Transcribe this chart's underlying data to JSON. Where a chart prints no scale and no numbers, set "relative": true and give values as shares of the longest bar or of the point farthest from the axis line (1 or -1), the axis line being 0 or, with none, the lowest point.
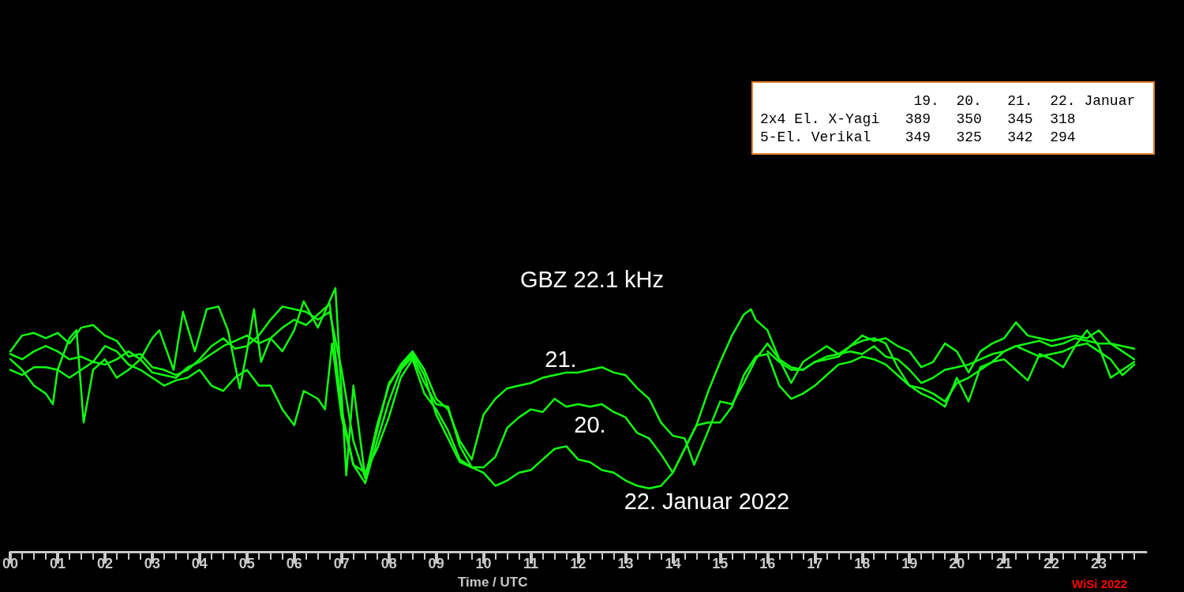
{
  "chart_data": [
    {
      "type": "line",
      "title": "GBZ 22.1 kHz",
      "xlabel": "Time / UTC",
      "annotations": [
        "WiSi 2022"
      ],
      "relative": true,
      "xlim": [
        0,
        24
      ],
      "xticks": [
        {
          "value": 0,
          "label": "00"
        },
        {
          "value": 0.25,
          "label": null
        },
        {
          "value": 0.5,
          "label": null
        },
        {
          "value": 0.75,
          "label": null
        },
        {
          "value": 1,
          "label": "01"
        },
        {
          "value": 1.25,
          "label": null
        },
        {
          "value": 1.5,
          "label": null
        },
        {
          "value": 1.75,
          "label": null
        },
        {
          "value": 2,
          "label": "02"
        },
        {
          "value": 2.25,
          "label": null
        },
        {
          "value": 2.5,
          "label": null
        },
        {
          "value": 2.75,
          "label": null
        },
        {
          "value": 3,
          "label": "03"
        },
        {
          "value": 3.25,
          "label": null
        },
        {
          "value": 3.5,
          "label": null
        },
        {
          "value": 3.75,
          "label": null
        },
        {
          "value": 4,
          "label": "04"
        },
        {
          "value": 4.25,
          "label": null
        },
        {
          "value": 4.5,
          "label": null
        },
        {
          "value": 4.75,
          "label": null
        },
        {
          "value": 5,
          "label": "05"
        },
        {
          "value": 5.25,
          "label": null
        },
        {
          "value": 5.5,
          "label": null
        },
        {
          "value": 5.75,
          "label": null
        },
        {
          "value": 6,
          "label": "06"
        },
        {
          "value": 6.25,
          "label": null
        },
        {
          "value": 6.5,
          "label": null
        },
        {
          "value": 6.75,
          "label": null
        },
        {
          "value": 7,
          "label": "07"
        },
        {
          "value": 7.25,
          "label": null
        },
        {
          "value": 7.5,
          "label": null
        },
        {
          "value": 7.75,
          "label": null
        },
        {
          "value": 8,
          "label": "08"
        },
        {
          "value": 8.25,
          "label": null
        },
        {
          "value": 8.5,
          "label": null
        },
        {
          "value": 8.75,
          "label": null
        },
        {
          "value": 9,
          "label": "09"
        },
        {
          "value": 9.25,
          "label": null
        },
        {
          "value": 9.5,
          "label": null
        },
        {
          "value": 9.75,
          "label": null
        },
        {
          "value": 10,
          "label": "10"
        },
        {
          "value": 10.25,
          "label": null
        },
        {
          "value": 10.5,
          "label": null
        },
        {
          "value": 10.75,
          "label": null
        },
        {
          "value": 11,
          "label": "11"
        },
        {
          "value": 11.25,
          "label": null
        },
        {
          "value": 11.5,
          "label": null
        },
        {
          "value": 11.75,
          "label": null
        },
        {
          "value": 12,
          "label": "12"
        },
        {
          "value": 12.25,
          "label": null
        },
        {
          "value": 12.5,
          "label": null
        },
        {
          "value": 12.75,
          "label": null
        },
        {
          "value": 13,
          "label": "13"
        },
        {
          "value": 13.25,
          "label": null
        },
        {
          "value": 13.5,
          "label": null
        },
        {
          "value": 13.75,
          "label": null
        },
        {
          "value": 14,
          "label": "14"
        },
        {
          "value": 14.25,
          "label": null
        },
        {
          "value": 14.5,
          "label": null
        },
        {
          "value": 14.75,
          "label": null
        },
        {
          "value": 15,
          "label": "15"
        },
        {
          "value": 15.25,
          "label": null
        },
        {
          "value": 15.5,
          "label": null
        },
        {
          "value": 15.75,
          "label": null
        },
        {
          "value": 16,
          "label": "16"
        },
        {
          "value": 16.25,
          "label": null
        },
        {
          "value": 16.5,
          "label": null
        },
        {
          "value": 16.75,
          "label": null
        },
        {
          "value": 17,
          "label": "17"
        },
        {
          "value": 17.25,
          "label": null
        },
        {
          "value": 17.5,
          "label": null
        },
        {
          "value": 17.75,
          "label": null
        },
        {
          "value": 18,
          "label": "18"
        },
        {
          "value": 18.25,
          "label": null
        },
        {
          "value": 18.5,
          "label": null
        },
        {
          "value": 18.75,
          "label": null
        },
        {
          "value": 19,
          "label": "19"
        },
        {
          "value": 19.25,
          "label": null
        },
        {
          "value": 19.5,
          "label": null
        },
        {
          "value": 19.75,
          "label": null
        },
        {
          "value": 20,
          "label": "20"
        },
        {
          "value": 20.25,
          "label": null
        },
        {
          "value": 20.5,
          "label": null
        },
        {
          "value": 20.75,
          "label": null
        },
        {
          "value": 21,
          "label": "21"
        },
        {
          "value": 21.25,
          "label": null
        },
        {
          "value": 21.5,
          "label": null
        },
        {
          "value": 21.75,
          "label": null
        },
        {
          "value": 22,
          "label": "22"
        },
        {
          "value": 22.25,
          "label": null
        },
        {
          "value": 22.5,
          "label": null
        },
        {
          "value": 22.75,
          "label": null
        },
        {
          "value": 23,
          "label": "23"
        },
        {
          "value": 23.25,
          "label": null
        },
        {
          "value": 23.5,
          "label": null
        },
        {
          "value": 23.75,
          "label": null
        }
      ],
      "series": [
        {
          "color": "#11ff11",
          "x": [
            0,
            0.25,
            0.5,
            0.75,
            0.9,
            1,
            1.25,
            1.4,
            1.55,
            1.75,
            2,
            2.25,
            2.5,
            2.75,
            3,
            3.15,
            3.45,
            3.65,
            3.9,
            4.15,
            4.4,
            4.6,
            4.85,
            5,
            5.15,
            5.3,
            5.5,
            5.75,
            6,
            6.2,
            6.5,
            6.87,
            7.1,
            7.25,
            7.5,
            7.75,
            8,
            8.25,
            8.5,
            8.75,
            9,
            9.25,
            9.5,
            9.75,
            12,
            16,
            16.25,
            16.5,
            16.75,
            17,
            17.25,
            17.5,
            17.75,
            18,
            18.25,
            18.5,
            18.75,
            19,
            19.25,
            19.5,
            19.75,
            20,
            20.25,
            20.5,
            20.75,
            21,
            21.25,
            21.5,
            21.75,
            22,
            22.25,
            22.5,
            22.75,
            23,
            23.25,
            23.5,
            23.75
          ],
          "values": [
            0.73,
            0.69,
            0.63,
            0.6,
            0.56,
            0.69,
            0.81,
            0.84,
            0.49,
            0.69,
            0.73,
            0.66,
            0.69,
            0.73,
            0.81,
            0.84,
            0.69,
            0.91,
            0.76,
            0.92,
            0.93,
            0.84,
            0.62,
            0.76,
            0.92,
            0.72,
            0.81,
            0.76,
            0.84,
            0.95,
            0.85,
            1,
            0.29,
            0.63,
            0.28,
            0.46,
            0.64,
            0.7,
            0.75,
            0.67,
            0.52,
            0.43,
            0.34,
            0.32,
            null,
            0.76,
            0.72,
            0.69,
            0.69,
            0.72,
            0.74,
            0.75,
            0.78,
            0.8,
            0.81,
            0.79,
            0.7,
            0.63,
            0.6,
            0.58,
            0.55,
            0.66,
            0.57,
            0.7,
            0.72,
            0.73,
            0.69,
            0.65,
            0.75,
            0.73,
            0.7,
            0.78,
            0.84,
            0.78,
            0.66,
            0.69,
            0.72
          ]
        },
        {
          "name": "21.",
          "color": "#11ff11",
          "x": [
            0,
            0.25,
            0.5,
            0.75,
            1,
            1.25,
            1.5,
            1.75,
            2,
            2.25,
            2.5,
            2.75,
            3,
            3.25,
            3.5,
            3.75,
            4,
            4.25,
            4.5,
            4.75,
            5,
            5.25,
            5.5,
            5.75,
            6,
            6.25,
            6.5,
            6.75,
            7,
            7.25,
            7.5,
            7.75,
            8,
            8.25,
            8.5,
            8.75,
            9,
            9.25,
            9.5,
            9.75,
            10,
            10.25,
            10.5,
            10.75,
            11,
            11.25,
            11.5,
            11.75,
            12,
            12.25,
            12.5,
            12.75,
            13,
            13.25,
            13.5,
            13.75,
            14,
            14.25,
            14.45,
            14.75,
            15,
            15.25,
            15.5,
            15.75,
            16,
            16.25,
            16.5,
            16.75,
            17,
            17.25,
            17.5,
            17.75,
            18,
            18.25,
            18.5,
            18.75,
            19,
            19.25,
            19.5,
            19.75,
            20,
            20.25,
            20.5,
            20.75,
            21,
            21.25,
            21.5,
            21.75,
            22,
            22.25,
            22.5,
            22.75,
            23,
            23.25,
            23.5,
            23.75
          ],
          "values": [
            0.76,
            0.82,
            0.83,
            0.81,
            0.83,
            0.79,
            0.85,
            0.86,
            0.82,
            0.8,
            0.74,
            0.75,
            0.7,
            0.69,
            0.67,
            0.69,
            0.73,
            0.78,
            0.81,
            0.77,
            0.78,
            0.82,
            0.88,
            0.93,
            0.92,
            0.91,
            0.88,
            0.91,
            0.69,
            0.42,
            0.28,
            0.48,
            0.63,
            0.71,
            0.76,
            0.69,
            0.58,
            0.54,
            0.42,
            0.35,
            0.52,
            0.58,
            0.62,
            0.63,
            0.64,
            0.66,
            0.67,
            0.68,
            0.68,
            0.69,
            0.7,
            0.68,
            0.67,
            0.62,
            0.58,
            0.49,
            0.44,
            0.43,
            0.33,
            0.46,
            0.57,
            0.56,
            0.64,
            0.73,
            0.79,
            0.73,
            0.7,
            0.69,
            0.72,
            0.73,
            0.74,
            0.78,
            0.82,
            0.8,
            0.81,
            0.78,
            0.76,
            0.7,
            0.72,
            0.79,
            0.76,
            0.68,
            0.76,
            0.79,
            0.81,
            0.87,
            0.82,
            0.81,
            0.8,
            0.81,
            0.82,
            0.81,
            0.84,
            0.79,
            0.76,
            0.73
          ]
        },
        {
          "name": "20.",
          "color": "#11ff11",
          "x": [
            0,
            0.25,
            0.5,
            0.75,
            1,
            1.25,
            1.5,
            1.75,
            2,
            2.25,
            2.5,
            2.75,
            3,
            3.25,
            3.5,
            3.75,
            4,
            4.25,
            4.5,
            4.75,
            5,
            5.25,
            5.5,
            5.75,
            6,
            6.25,
            6.5,
            6.75,
            7,
            7.25,
            7.5,
            7.75,
            8,
            8.25,
            8.5,
            8.75,
            9,
            9.25,
            9.5,
            9.75,
            10,
            10.25,
            10.5,
            10.75,
            11,
            11.25,
            11.5,
            11.75,
            12,
            12.25,
            12.5,
            12.75,
            13,
            13.25,
            13.5,
            13.75,
            14,
            14.25,
            14.5,
            14.75,
            15,
            15.25,
            15.5,
            15.75,
            16,
            16.25,
            16.5,
            16.75,
            17,
            17.25,
            17.5,
            17.75,
            18,
            18.25,
            18.5,
            18.75,
            19,
            19.25,
            19.5,
            19.75,
            20,
            20.25,
            20.5,
            20.75,
            21,
            21.25,
            21.5,
            21.75,
            22,
            22.25,
            22.5,
            22.75,
            23,
            23.25,
            23.5,
            23.75
          ],
          "values": [
            0.75,
            0.73,
            0.76,
            0.78,
            0.76,
            0.73,
            0.74,
            0.72,
            0.71,
            0.73,
            0.76,
            0.73,
            0.68,
            0.67,
            0.66,
            0.7,
            0.72,
            0.75,
            0.78,
            0.8,
            0.82,
            0.79,
            0.81,
            0.85,
            0.88,
            0.86,
            0.9,
            0.94,
            0.54,
            0.33,
            0.26,
            0.42,
            0.57,
            0.69,
            0.74,
            0.64,
            0.56,
            0.55,
            0.4,
            0.32,
            0.32,
            0.36,
            0.47,
            0.51,
            0.54,
            0.53,
            0.58,
            0.55,
            0.56,
            0.55,
            0.56,
            0.53,
            0.51,
            0.45,
            0.43,
            0.37,
            0.3,
            0.39,
            0.48,
            0.49,
            0.49,
            0.55,
            0.67,
            0.74,
            0.75,
            0.63,
            0.58,
            0.6,
            0.63,
            0.67,
            0.71,
            0.72,
            0.74,
            0.73,
            0.71,
            0.67,
            0.63,
            0.62,
            0.6,
            0.57,
            0.64,
            0.66,
            0.69,
            0.72,
            0.76,
            0.78,
            0.79,
            0.8,
            0.78,
            0.79,
            0.81,
            0.8,
            0.79,
            0.79,
            0.78,
            0.77
          ]
        },
        {
          "name": "22. Januar 2022",
          "color": "#11ff11",
          "x": [
            0,
            0.25,
            0.5,
            0.75,
            1,
            1.25,
            1.5,
            1.75,
            2,
            2.25,
            2.5,
            2.75,
            3,
            3.25,
            3.5,
            3.75,
            4,
            4.25,
            4.5,
            4.75,
            5,
            5.25,
            5.5,
            5.75,
            6,
            6.2,
            6.5,
            6.65,
            6.8,
            7,
            7.25,
            7.5,
            7.75,
            8,
            8.25,
            8.5,
            8.75,
            9,
            9.25,
            9.5,
            9.75,
            10,
            10.25,
            10.5,
            10.75,
            11,
            11.25,
            11.5,
            11.75,
            12,
            12.25,
            12.5,
            12.75,
            13,
            13.25,
            13.5,
            13.75,
            14,
            14.25,
            14.5,
            14.75,
            15,
            15.25,
            15.5,
            15.65,
            15.75,
            16,
            16.25,
            16.5,
            16.75,
            17,
            17.25,
            17.5,
            17.75,
            18,
            18.25,
            18.5,
            18.75,
            19,
            19.25,
            19.5,
            19.75,
            20,
            20.25,
            20.5,
            20.75,
            21,
            21.25,
            21.5,
            21.75,
            22,
            22.25,
            22.5,
            22.75,
            23,
            23.25,
            23.5,
            23.75
          ],
          "values": [
            0.69,
            0.67,
            0.7,
            0.7,
            0.69,
            0.66,
            0.69,
            0.72,
            0.78,
            0.76,
            0.71,
            0.69,
            0.66,
            0.63,
            0.65,
            0.66,
            0.69,
            0.63,
            0.61,
            0.66,
            0.69,
            0.63,
            0.63,
            0.54,
            0.48,
            0.61,
            0.58,
            0.54,
            0.79,
            0.51,
            0.33,
            0.3,
            0.39,
            0.51,
            0.66,
            0.73,
            0.6,
            0.54,
            0.46,
            0.35,
            0.32,
            0.3,
            0.25,
            0.27,
            0.3,
            0.31,
            0.35,
            0.39,
            0.4,
            0.35,
            0.34,
            0.31,
            0.3,
            0.27,
            0.25,
            0.24,
            0.25,
            0.3,
            0.39,
            0.48,
            0.61,
            0.72,
            0.82,
            0.9,
            0.92,
            0.88,
            0.84,
            0.73,
            0.64,
            0.72,
            0.75,
            0.78,
            0.75,
            0.76,
            0.75,
            0.78,
            0.74,
            0.73,
            0.69,
            0.64,
            0.66,
            0.69,
            0.7,
            0.71,
            0.73,
            0.75,
            0.76,
            0.78,
            0.76,
            0.74,
            0.75,
            0.76,
            0.78,
            0.79,
            0.76,
            0.73,
            0.67,
            0.71
          ]
        }
      ]
    },
    {
      "type": "other",
      "annotations": [
        "                  19.  20.   21.  22. Januar",
        "2x4 El. X-Yagi   389   350   345  318",
        "5-El. Verikal    349   325   342  294"
      ]
    }
  ]
}
